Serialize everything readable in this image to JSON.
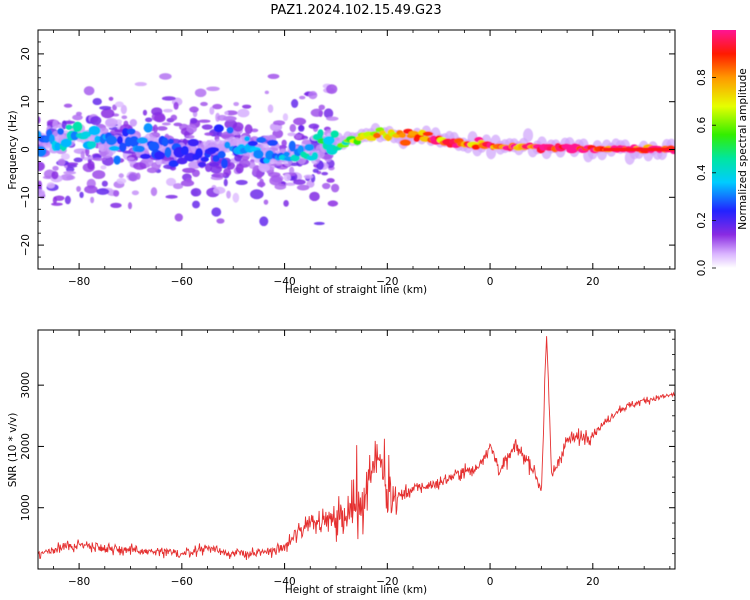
{
  "title": "PAZ1.2024.102.15.49.G23",
  "colors": {
    "snr_line": "#e53030",
    "axes": "#000000",
    "background": "#ffffff"
  },
  "chart_data": [
    {
      "type": "heatmap",
      "title": "PAZ1.2024.102.15.49.G23",
      "xlabel": "Height of straight line (km)",
      "ylabel": "Frequency (Hz)",
      "xlim": [
        -88,
        36
      ],
      "ylim": [
        -25,
        25
      ],
      "xticks": [
        -80,
        -60,
        -40,
        -20,
        0,
        20
      ],
      "yticks": [
        -20,
        -10,
        0,
        10,
        20
      ],
      "colormap": "rainbow",
      "colorbar": {
        "label": "Normalized spectral amplitude",
        "range": [
          0,
          1
        ],
        "ticks": [
          "0.0",
          "0.2",
          "0.4",
          "0.6",
          "0.8"
        ]
      },
      "ridge": {
        "description_points_height_km": [
          -88,
          -80,
          -70,
          -60,
          -50,
          -40,
          -30,
          -22,
          -15,
          -8,
          0,
          10,
          20,
          36
        ],
        "frequency_hz": [
          2,
          2.5,
          1.5,
          -0.5,
          1,
          -1,
          1,
          3.5,
          3,
          1.5,
          0.5,
          0.5,
          0.2,
          0
        ],
        "amplitude": [
          0.35,
          0.4,
          0.3,
          0.25,
          0.3,
          0.35,
          0.5,
          0.75,
          0.85,
          0.9,
          0.95,
          0.95,
          1.0,
          1.0
        ]
      }
    },
    {
      "type": "line",
      "xlabel": "Height of straight line (km)",
      "ylabel": "SNR (10 * v/v)",
      "xlim": [
        -88,
        36
      ],
      "ylim": [
        0,
        3900
      ],
      "xticks": [
        -80,
        -60,
        -40,
        -20,
        0,
        20
      ],
      "yticks": [
        1000,
        2000,
        3000
      ],
      "series": [
        {
          "x": [
            -88,
            -80,
            -70,
            -60,
            -55,
            -50,
            -45,
            -40,
            -35,
            -30,
            -25,
            -22,
            -20,
            -15,
            -10,
            -5,
            -3,
            0,
            2,
            5,
            8,
            10,
            11,
            12,
            15,
            20,
            25,
            30,
            36
          ],
          "y": [
            250,
            400,
            300,
            250,
            350,
            250,
            250,
            350,
            800,
            800,
            1100,
            1900,
            1100,
            1300,
            1400,
            1600,
            1600,
            2000,
            1600,
            2000,
            1700,
            1300,
            3800,
            1500,
            2100,
            2200,
            2600,
            2750,
            2850
          ]
        }
      ]
    }
  ]
}
